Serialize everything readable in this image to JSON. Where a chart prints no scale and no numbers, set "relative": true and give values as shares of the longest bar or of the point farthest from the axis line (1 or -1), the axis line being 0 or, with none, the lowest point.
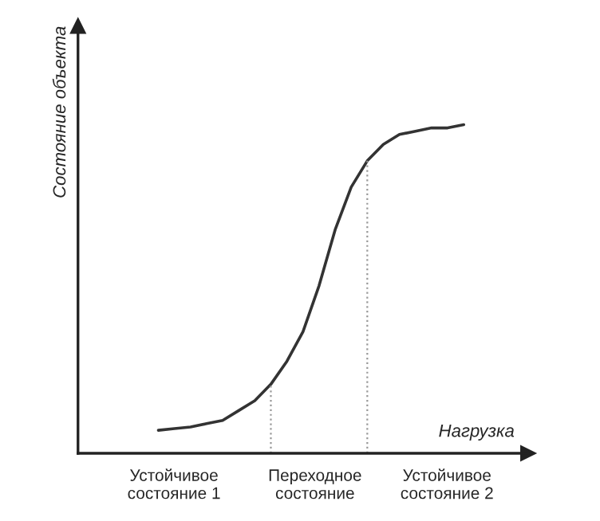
{
  "chart_data": {
    "type": "line",
    "relative": true,
    "xlabel": "Нагрузка",
    "ylabel": "Состояние объекта",
    "legend": false,
    "marker": "none",
    "line_style": "solid",
    "categories": [
      null,
      null,
      null,
      null,
      null,
      null,
      null,
      null,
      null,
      null,
      null,
      null,
      null,
      null,
      null,
      null,
      null,
      null,
      null,
      null
    ],
    "series": [
      {
        "color": "#333333",
        "values": [
          0.07,
          0.075,
          0.08,
          0.09,
          0.1,
          0.13,
          0.16,
          0.21,
          0.28,
          0.37,
          0.51,
          0.68,
          0.81,
          0.89,
          0.94,
          0.97,
          0.98,
          0.99,
          0.99,
          1
        ]
      }
    ],
    "annotations": [
      "Устойчивое\nсостояние 1",
      "Переходное\nсостояние",
      "Устойчивое\nсостояние 2"
    ]
  }
}
